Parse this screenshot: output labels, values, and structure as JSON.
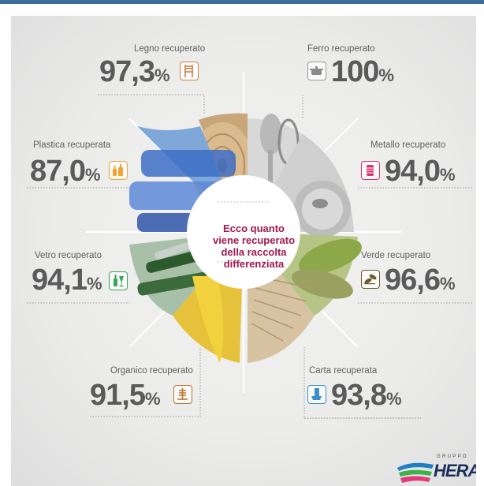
{
  "center_text": "Ecco quanto viene recuperato della raccolta differenziata",
  "items": {
    "legno": {
      "label": "Legno recuperato",
      "value": "97,3",
      "unit": "%",
      "icon": "chair-icon",
      "color": "#c8834a"
    },
    "ferro": {
      "label": "Ferro recuperato",
      "value": "100",
      "unit": "%",
      "icon": "pot-icon",
      "color": "#9a9a9a"
    },
    "plastica": {
      "label": "Plastica recuperata",
      "value": "87,0",
      "unit": "%",
      "icon": "bottles-icon",
      "color": "#f0a531"
    },
    "metallo": {
      "label": "Metallo recuperato",
      "value": "94,0",
      "unit": "%",
      "icon": "can-icon",
      "color": "#d8326f"
    },
    "vetro": {
      "label": "Vetro recuperato",
      "value": "94,1",
      "unit": "%",
      "icon": "glass-bottle-icon",
      "color": "#3ca35a"
    },
    "verde": {
      "label": "Verde recuperato",
      "value": "96,6",
      "unit": "%",
      "icon": "leaves-icon",
      "color": "#6b5a2e"
    },
    "organico": {
      "label": "Organico recuperato",
      "value": "91,5",
      "unit": "%",
      "icon": "fishbone-icon",
      "color": "#b8752c"
    },
    "carta": {
      "label": "Carta recuperata",
      "value": "93,8",
      "unit": "%",
      "icon": "paper-icon",
      "color": "#3a8fc8"
    }
  },
  "logo": {
    "group": "GRUPPO",
    "name": "HERA"
  },
  "colors": {
    "accent": "#a0184f",
    "top_bar": "#3d6f9a"
  }
}
